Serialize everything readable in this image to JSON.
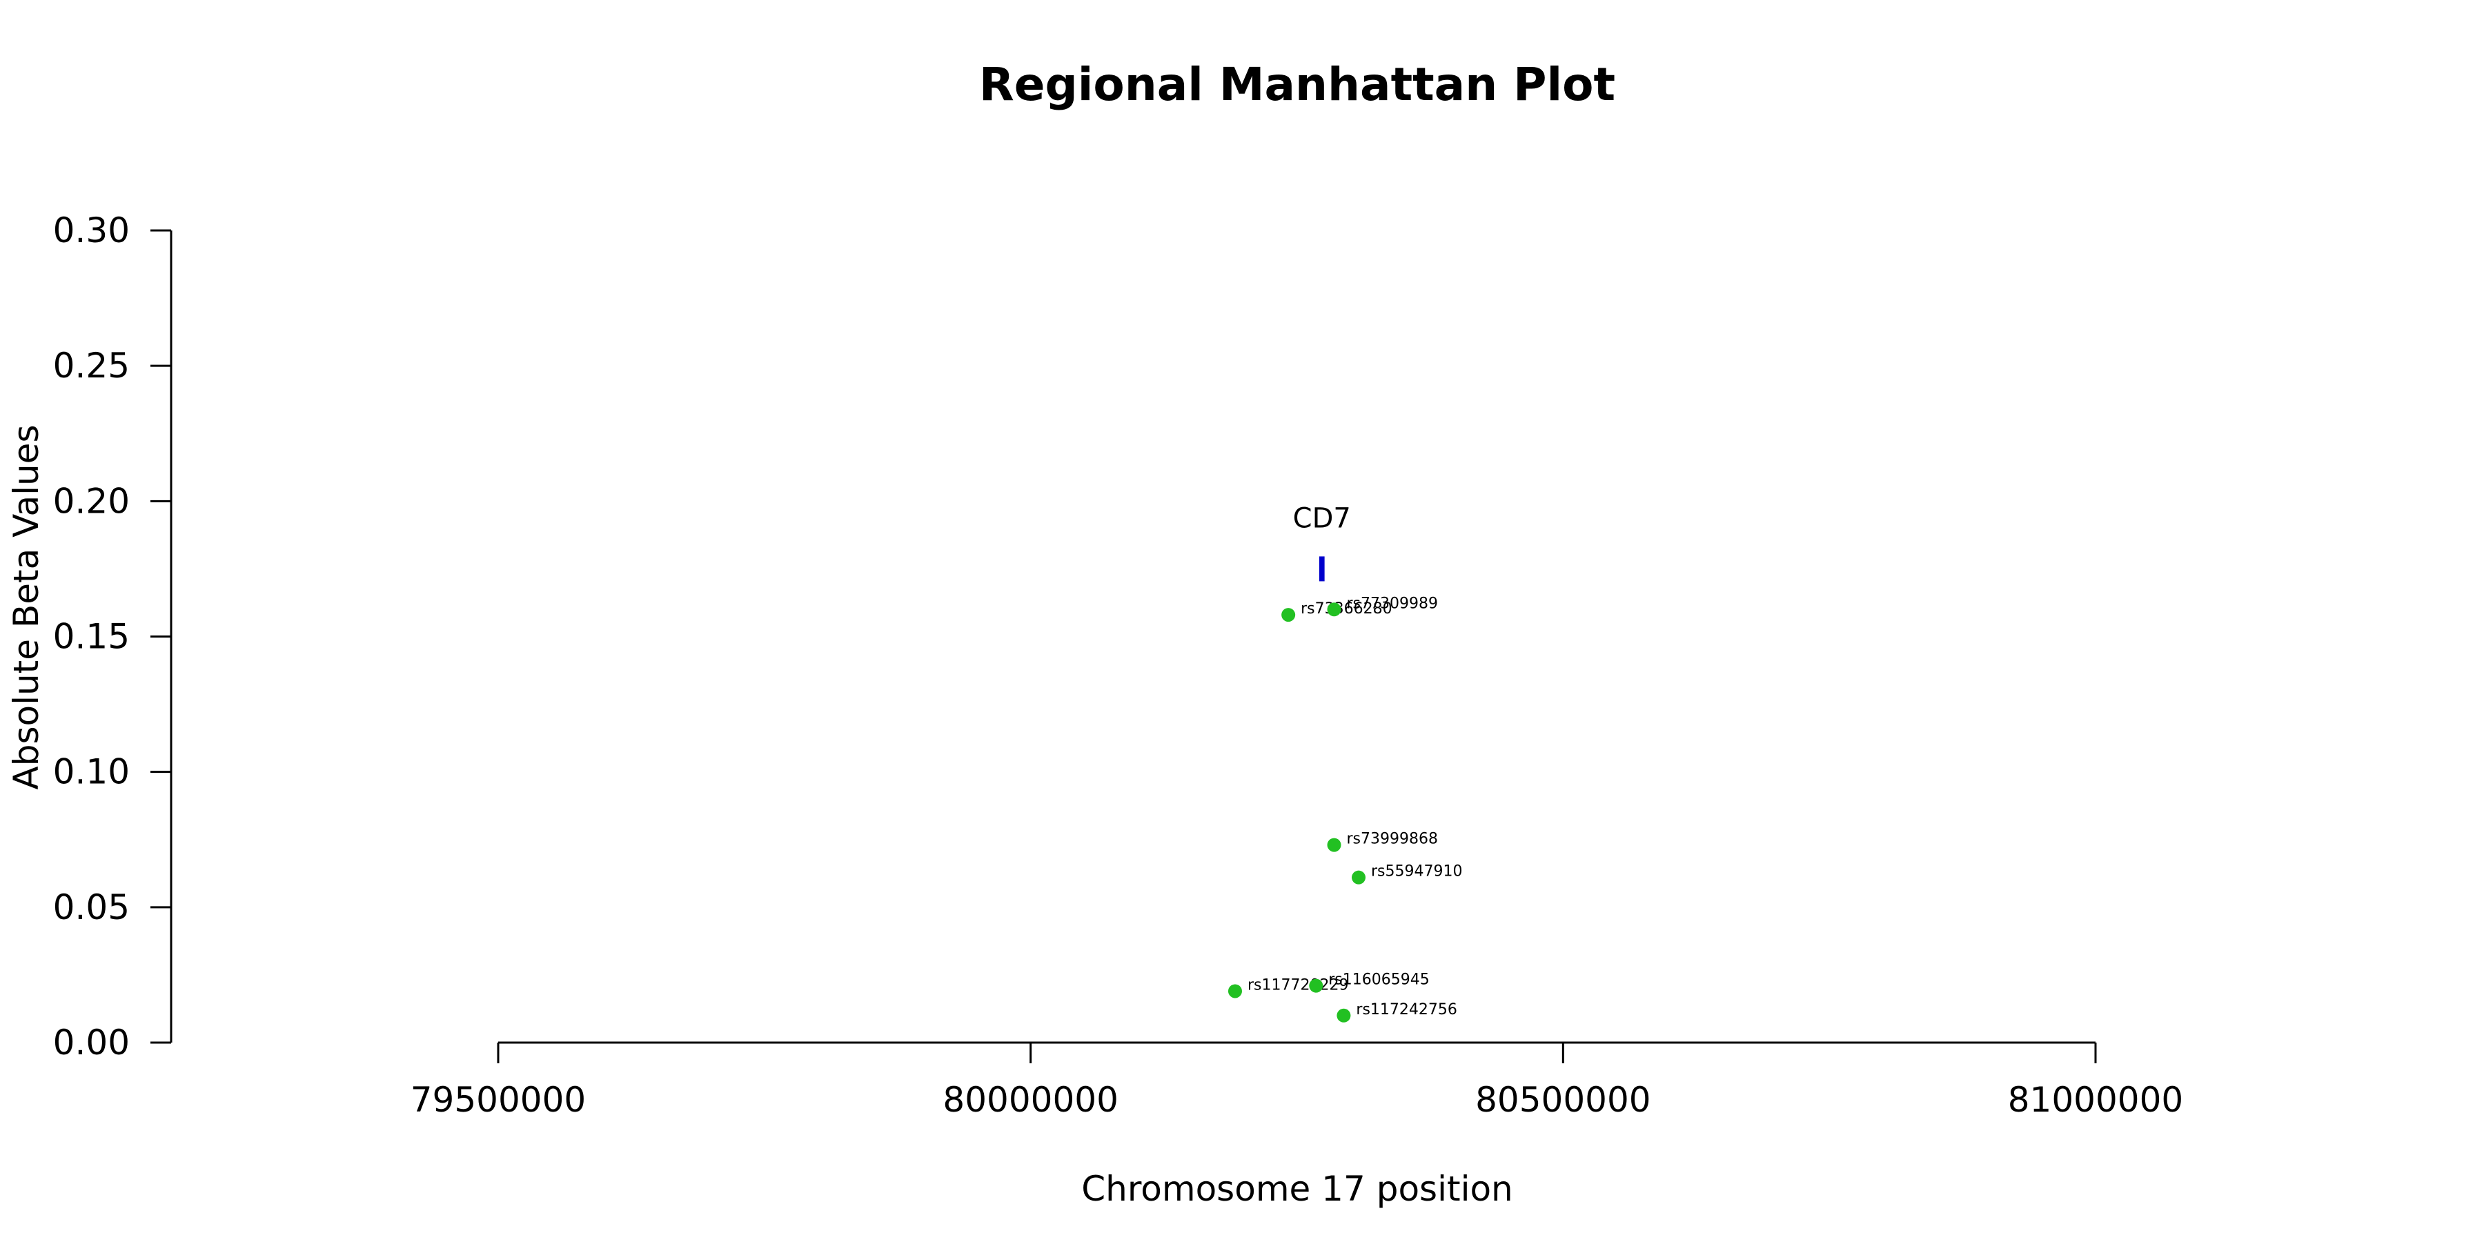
{
  "chart_data": {
    "type": "scatter",
    "title": "Regional Manhattan Plot",
    "xlabel": "Chromosome 17 position",
    "ylabel": "Absolute Beta Values",
    "xlim": [
      79500000,
      81000000
    ],
    "ylim": [
      0.0,
      0.3
    ],
    "x_ticks": [
      79500000,
      80000000,
      80500000,
      81000000
    ],
    "y_ticks": [
      0.0,
      0.05,
      0.1,
      0.15,
      0.2,
      0.25,
      0.3
    ],
    "x_tick_labels": [
      "79500000",
      "80000000",
      "80500000",
      "81000000"
    ],
    "y_tick_labels": [
      "0.00",
      "0.05",
      "0.10",
      "0.15",
      "0.20",
      "0.25",
      "0.30"
    ],
    "grid": false,
    "point_color": "#22c022",
    "gene_color": "#0000cc",
    "points": [
      {
        "label": "rs73366280",
        "x": 80242000,
        "y": 0.158
      },
      {
        "label": "rs77309989",
        "x": 80285000,
        "y": 0.16
      },
      {
        "label": "rs73999868",
        "x": 80285000,
        "y": 0.073
      },
      {
        "label": "rs55947910",
        "x": 80308000,
        "y": 0.061
      },
      {
        "label": "rs117720229",
        "x": 80192000,
        "y": 0.019
      },
      {
        "label": "rs116065945",
        "x": 80268000,
        "y": 0.021
      },
      {
        "label": "rs117242756",
        "x": 80294000,
        "y": 0.01
      }
    ],
    "genes": [
      {
        "name": "CD7",
        "start": 80271000,
        "end": 80276000,
        "y": 0.175
      }
    ]
  }
}
